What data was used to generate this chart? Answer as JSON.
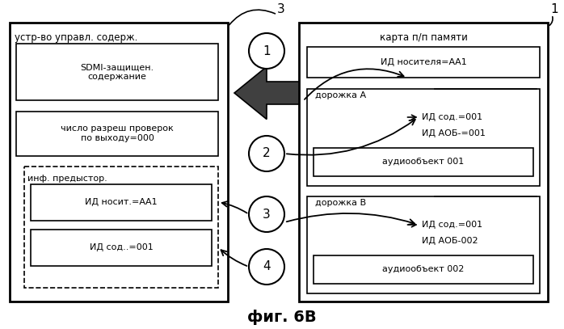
{
  "fig_label": "фиг. 6В",
  "label_3": "3",
  "label_1": "1",
  "left_box_title": "устр-во управл. содерж.",
  "right_box_title": "карта п/п памяти",
  "sdmi_box_text": "SDMI-защищен.\nсодержание",
  "check_box_text": "число разреш проверок\nпо выходу=000",
  "history_label": "инф. предыстор.",
  "id_media_box_text": "ИД носит.=АА1",
  "id_content_box_text": "ИД сод..=001",
  "media_id_box_text": "ИД носителя=АА1",
  "track_a_label": "дорожка А",
  "track_a_id_sod": "ИД сод.=001",
  "track_a_id_aob": "ИД АОБ-=001",
  "track_a_audio_box": "аудиообъект 001",
  "track_b_label": "дорожка В",
  "track_b_id_sod": "ИД сод.=001",
  "track_b_id_aob": "ИД АОБ-002",
  "track_b_audio_box": "аудиообъект 002",
  "bg_color": "#ffffff",
  "box_edge_color": "#000000",
  "text_color": "#000000"
}
